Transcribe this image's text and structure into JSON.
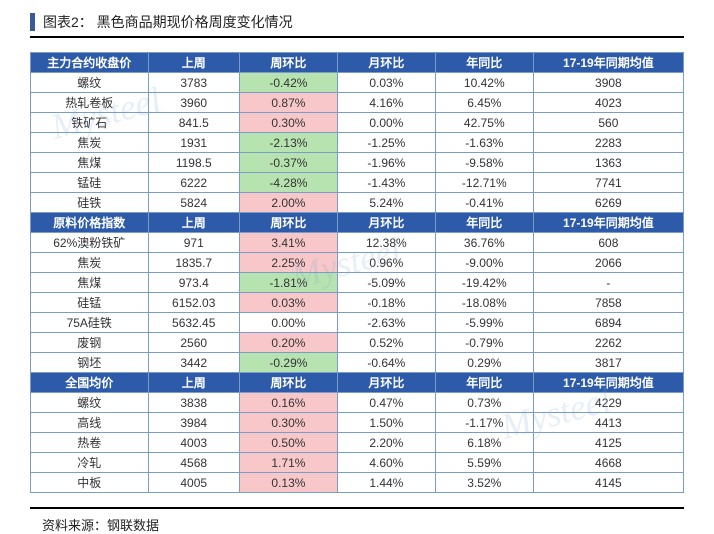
{
  "title": "图表2：  黑色商品期现价格周度变化情况",
  "footer": "资料来源：钢联数据",
  "watermark_text": "Mysteel",
  "colors": {
    "header_bg": "#2d5ba9",
    "header_fg": "#ffffff",
    "border": "#7a9cc6",
    "pos_bg": "#f8c7c9",
    "neg_bg": "#b7e3b0",
    "title_bar": "#3b5998"
  },
  "sections": [
    {
      "header": [
        "主力合约收盘价",
        "上周",
        "周环比",
        "月环比",
        "年同比",
        "17-19年同期均值"
      ],
      "rows": [
        {
          "name": "螺纹",
          "last": "3783",
          "wow": "-0.42%",
          "wcls": "neg",
          "mom": "0.03%",
          "yoy": "10.42%",
          "avg": "3908"
        },
        {
          "name": "热轧卷板",
          "last": "3960",
          "wow": "0.87%",
          "wcls": "pos",
          "mom": "4.16%",
          "yoy": "6.45%",
          "avg": "4023"
        },
        {
          "name": "铁矿石",
          "last": "841.5",
          "wow": "0.30%",
          "wcls": "pos",
          "mom": "0.00%",
          "yoy": "42.75%",
          "avg": "560"
        },
        {
          "name": "焦炭",
          "last": "1931",
          "wow": "-2.13%",
          "wcls": "neg",
          "mom": "-1.25%",
          "yoy": "-1.63%",
          "avg": "2283"
        },
        {
          "name": "焦煤",
          "last": "1198.5",
          "wow": "-0.37%",
          "wcls": "neg",
          "mom": "-1.96%",
          "yoy": "-9.58%",
          "avg": "1363"
        },
        {
          "name": "锰硅",
          "last": "6222",
          "wow": "-4.28%",
          "wcls": "neg",
          "mom": "-1.43%",
          "yoy": "-12.71%",
          "avg": "7741"
        },
        {
          "name": "硅铁",
          "last": "5824",
          "wow": "2.00%",
          "wcls": "pos",
          "mom": "5.24%",
          "yoy": "-0.41%",
          "avg": "6269"
        }
      ]
    },
    {
      "header": [
        "原料价格指数",
        "上周",
        "周环比",
        "月环比",
        "年同比",
        "17-19年同期均值"
      ],
      "rows": [
        {
          "name": "62%澳粉铁矿",
          "last": "971",
          "wow": "3.41%",
          "wcls": "pos",
          "mom": "12.38%",
          "yoy": "36.76%",
          "avg": "608"
        },
        {
          "name": "焦炭",
          "last": "1835.7",
          "wow": "2.25%",
          "wcls": "pos",
          "mom": "0.96%",
          "yoy": "-9.00%",
          "avg": "2066"
        },
        {
          "name": "焦煤",
          "last": "973.4",
          "wow": "-1.81%",
          "wcls": "neg",
          "mom": "-5.09%",
          "yoy": "-19.42%",
          "avg": "-"
        },
        {
          "name": "硅锰",
          "last": "6152.03",
          "wow": "0.03%",
          "wcls": "pos",
          "mom": "-0.18%",
          "yoy": "-18.08%",
          "avg": "7858"
        },
        {
          "name": "75A硅铁",
          "last": "5632.45",
          "wow": "0.00%",
          "wcls": "",
          "mom": "-2.63%",
          "yoy": "-5.99%",
          "avg": "6894"
        },
        {
          "name": "废钢",
          "last": "2560",
          "wow": "0.20%",
          "wcls": "pos",
          "mom": "0.52%",
          "yoy": "-0.79%",
          "avg": "2262"
        },
        {
          "name": "钢坯",
          "last": "3442",
          "wow": "-0.29%",
          "wcls": "neg",
          "mom": "-0.64%",
          "yoy": "0.29%",
          "avg": "3817"
        }
      ]
    },
    {
      "header": [
        "全国均价",
        "上周",
        "周环比",
        "月环比",
        "年同比",
        "17-19年同期均值"
      ],
      "rows": [
        {
          "name": "螺纹",
          "last": "3838",
          "wow": "0.16%",
          "wcls": "pos",
          "mom": "0.47%",
          "yoy": "0.73%",
          "avg": "4229"
        },
        {
          "name": "高线",
          "last": "3984",
          "wow": "0.30%",
          "wcls": "pos",
          "mom": "1.50%",
          "yoy": "-1.17%",
          "avg": "4413"
        },
        {
          "name": "热卷",
          "last": "4003",
          "wow": "0.50%",
          "wcls": "pos",
          "mom": "2.20%",
          "yoy": "6.18%",
          "avg": "4125"
        },
        {
          "name": "冷轧",
          "last": "4568",
          "wow": "1.71%",
          "wcls": "pos",
          "mom": "4.60%",
          "yoy": "5.59%",
          "avg": "4668"
        },
        {
          "name": "中板",
          "last": "4005",
          "wow": "0.13%",
          "wcls": "pos",
          "mom": "1.44%",
          "yoy": "3.52%",
          "avg": "4145"
        }
      ]
    }
  ]
}
